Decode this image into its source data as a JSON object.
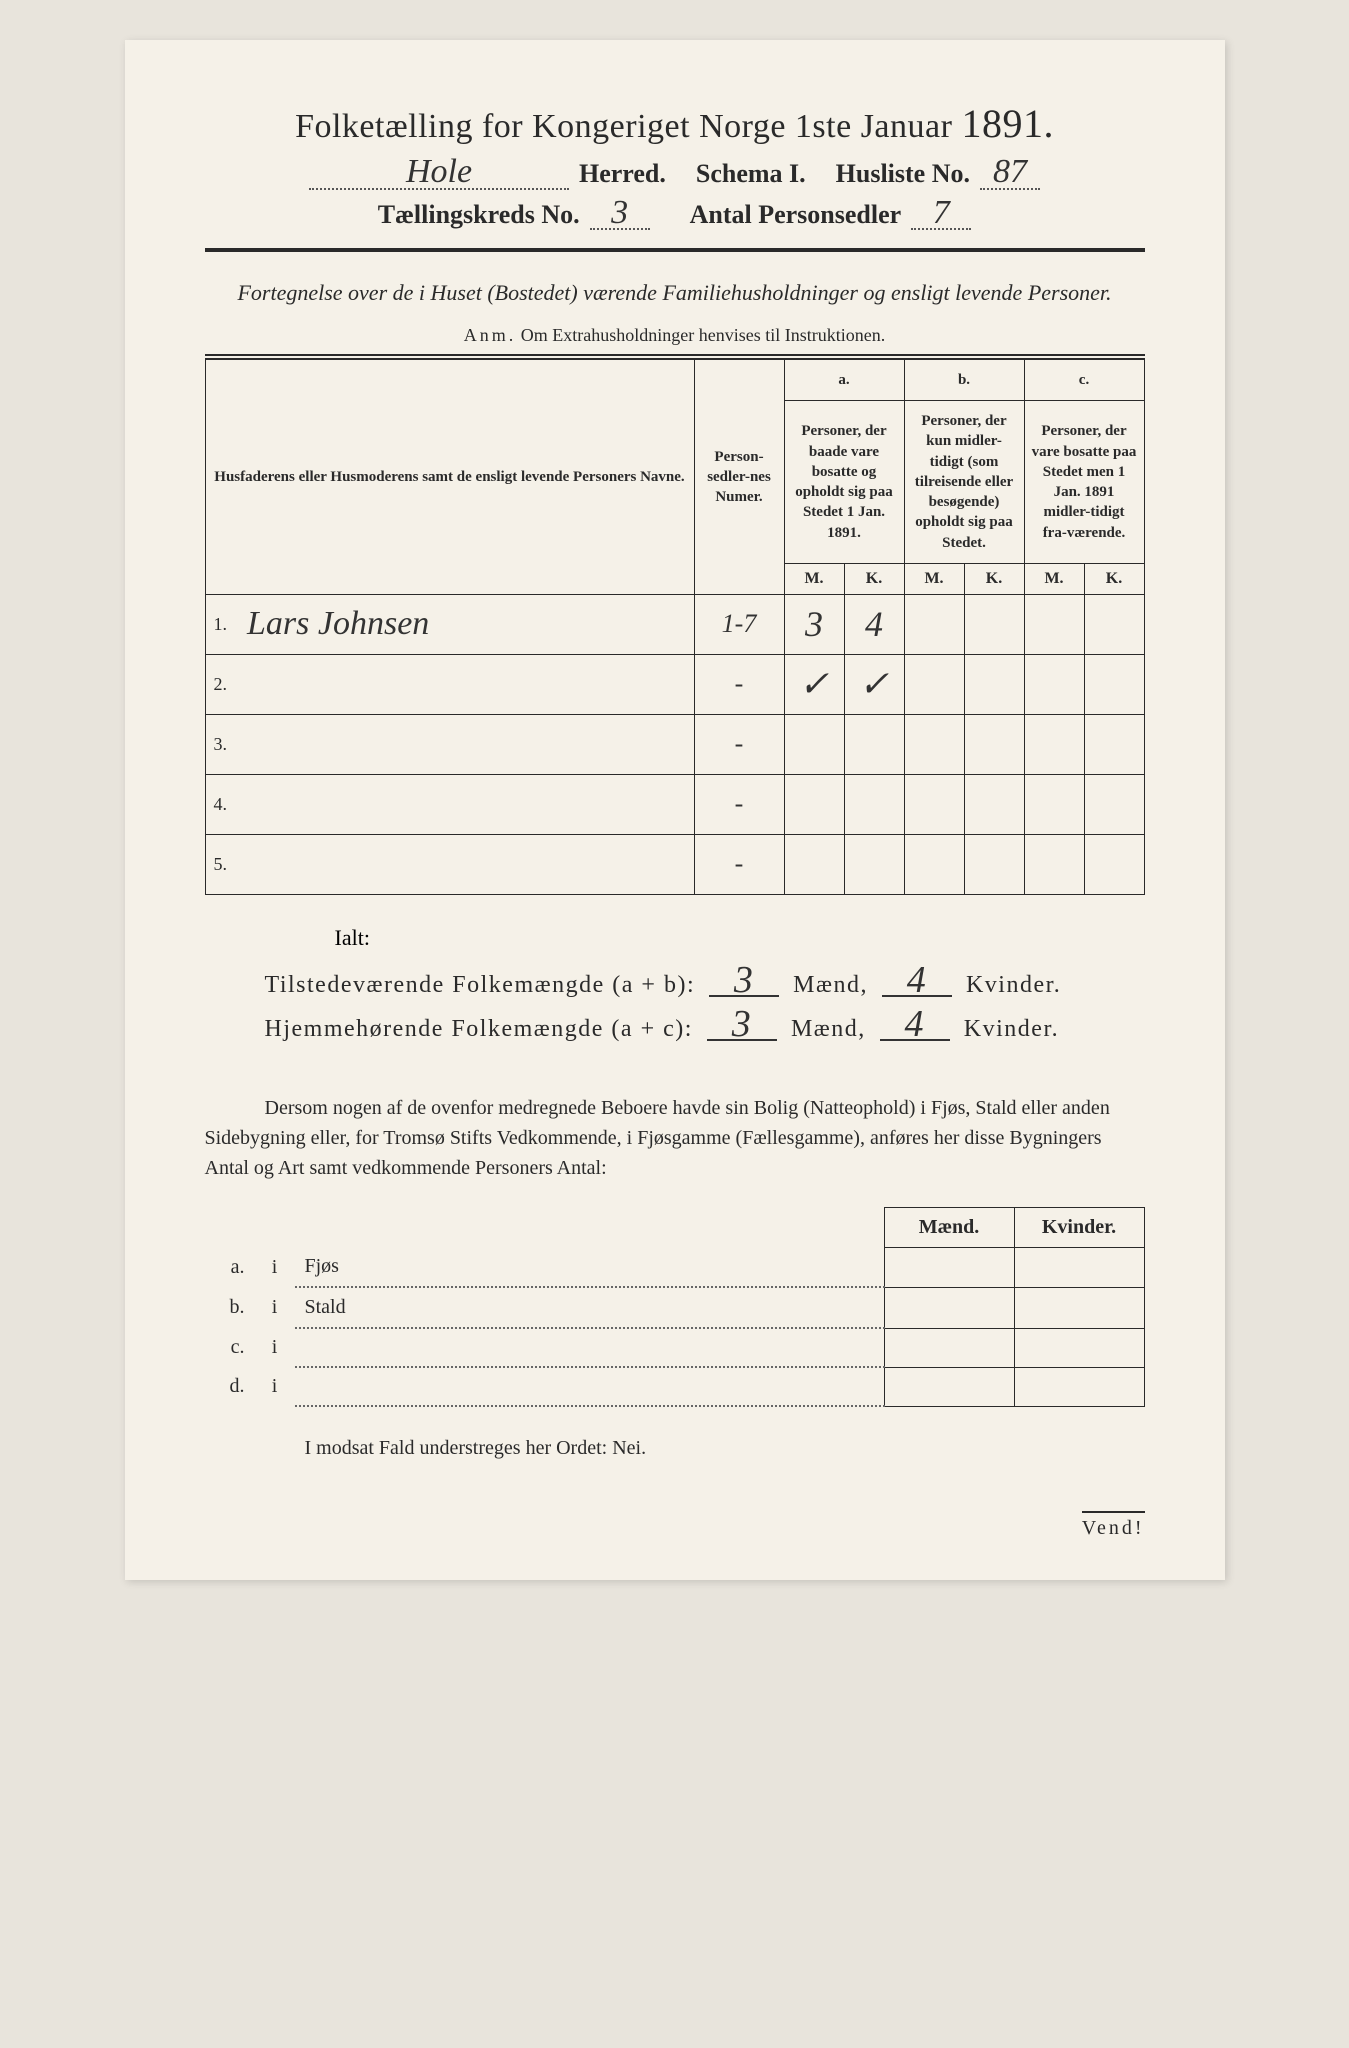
{
  "header": {
    "title_prefix": "Folketælling for Kongeriget Norge 1ste Januar ",
    "year": "1891.",
    "herred_value": "Hole",
    "herred_label": "Herred.",
    "schema_label": "Schema I.",
    "husliste_label": "Husliste No.",
    "husliste_value": "87",
    "kreds_label": "Tællingskreds No.",
    "kreds_value": "3",
    "antal_label": "Antal Personsedler",
    "antal_value": "7"
  },
  "subtitle": "Fortegnelse over de i Huset (Bostedet) værende Familiehusholdninger og ensligt levende Personer.",
  "anm_label": "Anm.",
  "anm_text": "Om Extrahusholdninger henvises til Instruktionen.",
  "table": {
    "col1": "Husfaderens eller Husmoderens samt de ensligt levende Personers Navne.",
    "col2": "Person-sedler-nes Numer.",
    "col_a_label": "a.",
    "col_a": "Personer, der baade vare bosatte og opholdt sig paa Stedet 1 Jan. 1891.",
    "col_b_label": "b.",
    "col_b": "Personer, der kun midler-tidigt (som tilreisende eller besøgende) opholdt sig paa Stedet.",
    "col_c_label": "c.",
    "col_c": "Personer, der vare bosatte paa Stedet men 1 Jan. 1891 midler-tidigt fra-værende.",
    "M": "M.",
    "K": "K.",
    "rows": [
      {
        "n": "1.",
        "name": "Lars Johnsen",
        "pnum": "1-7",
        "aM": "3",
        "aK": "4",
        "bM": "",
        "bK": "",
        "cM": "",
        "cK": ""
      },
      {
        "n": "2.",
        "name": "",
        "pnum": "-",
        "aM": "✓",
        "aK": "✓",
        "bM": "",
        "bK": "",
        "cM": "",
        "cK": ""
      },
      {
        "n": "3.",
        "name": "",
        "pnum": "-",
        "aM": "",
        "aK": "",
        "bM": "",
        "bK": "",
        "cM": "",
        "cK": ""
      },
      {
        "n": "4.",
        "name": "",
        "pnum": "-",
        "aM": "",
        "aK": "",
        "bM": "",
        "bK": "",
        "cM": "",
        "cK": ""
      },
      {
        "n": "5.",
        "name": "",
        "pnum": "-",
        "aM": "",
        "aK": "",
        "bM": "",
        "bK": "",
        "cM": "",
        "cK": ""
      }
    ]
  },
  "ialt": "Ialt:",
  "summary": {
    "line1_label": "Tilstedeværende Folkemængde (a + b):",
    "line2_label": "Hjemmehørende Folkemængde (a + c):",
    "maend": "Mænd,",
    "kvinder": "Kvinder.",
    "t_m": "3",
    "t_k": "4",
    "h_m": "3",
    "h_k": "4"
  },
  "paragraph": "Dersom nogen af de ovenfor medregnede Beboere havde sin Bolig (Natteophold) i Fjøs, Stald eller anden Sidebygning eller, for Tromsø Stifts Vedkommende, i Fjøsgamme (Fællesgamme), anføres her disse Bygningers Antal og Art samt vedkommende Personers Antal:",
  "bottom": {
    "maend": "Mænd.",
    "kvinder": "Kvinder.",
    "rows": [
      {
        "label": "a.",
        "i": "i",
        "name": "Fjøs"
      },
      {
        "label": "b.",
        "i": "i",
        "name": "Stald"
      },
      {
        "label": "c.",
        "i": "i",
        "name": ""
      },
      {
        "label": "d.",
        "i": "i",
        "name": ""
      }
    ]
  },
  "nei_line": "I modsat Fald understreges her Ordet: Nei.",
  "vend": "Vend!",
  "colors": {
    "page_bg": "#f5f1e8",
    "body_bg": "#e8e4dc",
    "text": "#2a2a2a",
    "handwriting": "#333333",
    "border": "#2a2a2a"
  },
  "typography": {
    "title_fontsize": 34,
    "year_fontsize": 40,
    "header_fontsize": 26,
    "subtitle_fontsize": 22,
    "table_fontsize": 16,
    "handwriting_fontsize": 36
  }
}
